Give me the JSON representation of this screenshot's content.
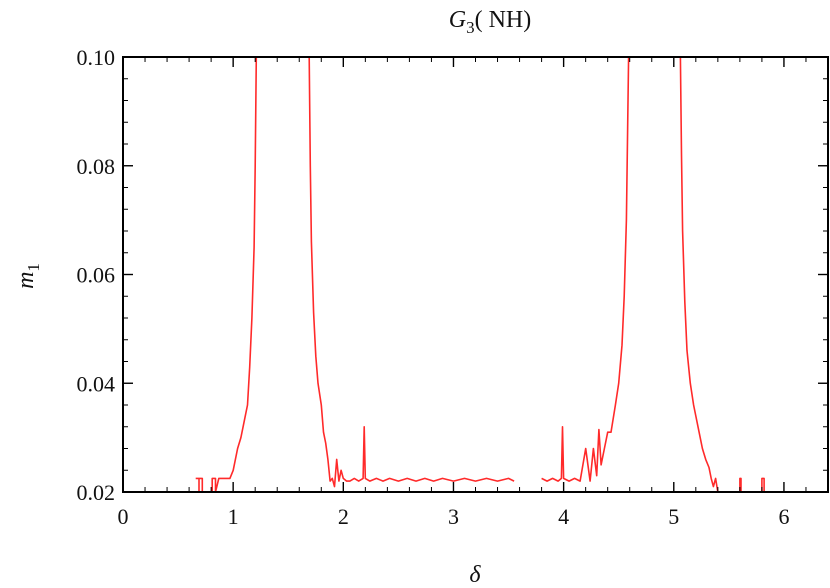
{
  "chart_data": {
    "type": "line",
    "title": {
      "main": "G",
      "sub": "3",
      "rest": "( NH)"
    },
    "xlabel": "δ",
    "ylabel": {
      "main": "m",
      "sub": "1"
    },
    "xlim": [
      0,
      6.4
    ],
    "ylim": [
      0.02,
      0.1
    ],
    "xticks": [
      0,
      1,
      2,
      3,
      4,
      5,
      6
    ],
    "xtick_labels": [
      "0",
      "1",
      "2",
      "3",
      "4",
      "5",
      "6"
    ],
    "yticks": [
      0.02,
      0.04,
      0.06,
      0.08,
      0.1
    ],
    "ytick_labels": [
      "0.02",
      "0.04",
      "0.06",
      "0.08",
      "0.10"
    ],
    "grid": false,
    "series": [
      {
        "color": "#ff2a2a",
        "segments": [
          [
            [
              0.66,
              0.0225
            ],
            [
              0.69,
              0.0225
            ],
            [
              0.69,
              0.02
            ],
            [
              0.69,
              0.0225
            ],
            [
              0.72,
              0.0225
            ],
            [
              0.72,
              0.02
            ]
          ],
          [
            [
              0.81,
              0.02
            ],
            [
              0.81,
              0.0225
            ],
            [
              0.84,
              0.0225
            ],
            [
              0.84,
              0.02
            ],
            [
              0.87,
              0.0225
            ],
            [
              0.97,
              0.0225
            ],
            [
              1.0,
              0.024
            ],
            [
              1.04,
              0.028
            ],
            [
              1.07,
              0.03
            ],
            [
              1.1,
              0.033
            ],
            [
              1.13,
              0.036
            ],
            [
              1.15,
              0.043
            ],
            [
              1.17,
              0.052
            ],
            [
              1.19,
              0.065
            ],
            [
              1.2,
              0.08
            ],
            [
              1.21,
              0.1
            ]
          ],
          [
            [
              1.69,
              0.1
            ],
            [
              1.7,
              0.08
            ],
            [
              1.71,
              0.066
            ],
            [
              1.73,
              0.053
            ],
            [
              1.75,
              0.045
            ],
            [
              1.77,
              0.04
            ],
            [
              1.8,
              0.036
            ],
            [
              1.82,
              0.031
            ],
            [
              1.84,
              0.029
            ],
            [
              1.86,
              0.026
            ],
            [
              1.88,
              0.022
            ],
            [
              1.9,
              0.0225
            ],
            [
              1.92,
              0.021
            ],
            [
              1.94,
              0.026
            ],
            [
              1.96,
              0.022
            ],
            [
              1.98,
              0.024
            ],
            [
              2.0,
              0.0225
            ],
            [
              2.03,
              0.022
            ],
            [
              2.06,
              0.022
            ],
            [
              2.1,
              0.0225
            ],
            [
              2.14,
              0.022
            ],
            [
              2.18,
              0.0225
            ],
            [
              2.19,
              0.032
            ],
            [
              2.2,
              0.0225
            ],
            [
              2.24,
              0.022
            ],
            [
              2.3,
              0.0225
            ],
            [
              2.36,
              0.022
            ],
            [
              2.42,
              0.0225
            ],
            [
              2.5,
              0.022
            ],
            [
              2.58,
              0.0225
            ],
            [
              2.66,
              0.022
            ],
            [
              2.74,
              0.0225
            ],
            [
              2.82,
              0.022
            ],
            [
              2.9,
              0.0225
            ],
            [
              3.0,
              0.022
            ],
            [
              3.1,
              0.0225
            ],
            [
              3.2,
              0.022
            ],
            [
              3.3,
              0.0225
            ],
            [
              3.4,
              0.022
            ],
            [
              3.5,
              0.0225
            ],
            [
              3.55,
              0.022
            ]
          ],
          [
            [
              3.8,
              0.0225
            ],
            [
              3.85,
              0.022
            ],
            [
              3.9,
              0.0225
            ],
            [
              3.95,
              0.022
            ],
            [
              3.98,
              0.0225
            ],
            [
              3.99,
              0.032
            ],
            [
              4.0,
              0.0225
            ],
            [
              4.05,
              0.022
            ],
            [
              4.1,
              0.0225
            ],
            [
              4.15,
              0.022
            ],
            [
              4.2,
              0.028
            ],
            [
              4.24,
              0.022
            ],
            [
              4.27,
              0.028
            ],
            [
              4.3,
              0.023
            ],
            [
              4.32,
              0.0315
            ],
            [
              4.34,
              0.025
            ],
            [
              4.37,
              0.028
            ],
            [
              4.4,
              0.031
            ],
            [
              4.43,
              0.031
            ],
            [
              4.47,
              0.036
            ],
            [
              4.5,
              0.04
            ],
            [
              4.53,
              0.047
            ],
            [
              4.55,
              0.056
            ],
            [
              4.57,
              0.07
            ],
            [
              4.58,
              0.085
            ],
            [
              4.59,
              0.1
            ]
          ],
          [
            [
              5.06,
              0.1
            ],
            [
              5.07,
              0.082
            ],
            [
              5.08,
              0.068
            ],
            [
              5.1,
              0.055
            ],
            [
              5.12,
              0.046
            ],
            [
              5.15,
              0.04
            ],
            [
              5.18,
              0.036
            ],
            [
              5.2,
              0.034
            ],
            [
              5.23,
              0.031
            ],
            [
              5.26,
              0.028
            ],
            [
              5.29,
              0.026
            ],
            [
              5.32,
              0.0245
            ],
            [
              5.34,
              0.0225
            ],
            [
              5.36,
              0.021
            ],
            [
              5.38,
              0.0225
            ],
            [
              5.4,
              0.02
            ]
          ],
          [
            [
              5.6,
              0.02
            ],
            [
              5.6,
              0.0225
            ],
            [
              5.61,
              0.0225
            ],
            [
              5.61,
              0.02
            ]
          ],
          [
            [
              5.8,
              0.02
            ],
            [
              5.8,
              0.0225
            ],
            [
              5.82,
              0.0225
            ],
            [
              5.82,
              0.02
            ]
          ]
        ]
      }
    ]
  }
}
